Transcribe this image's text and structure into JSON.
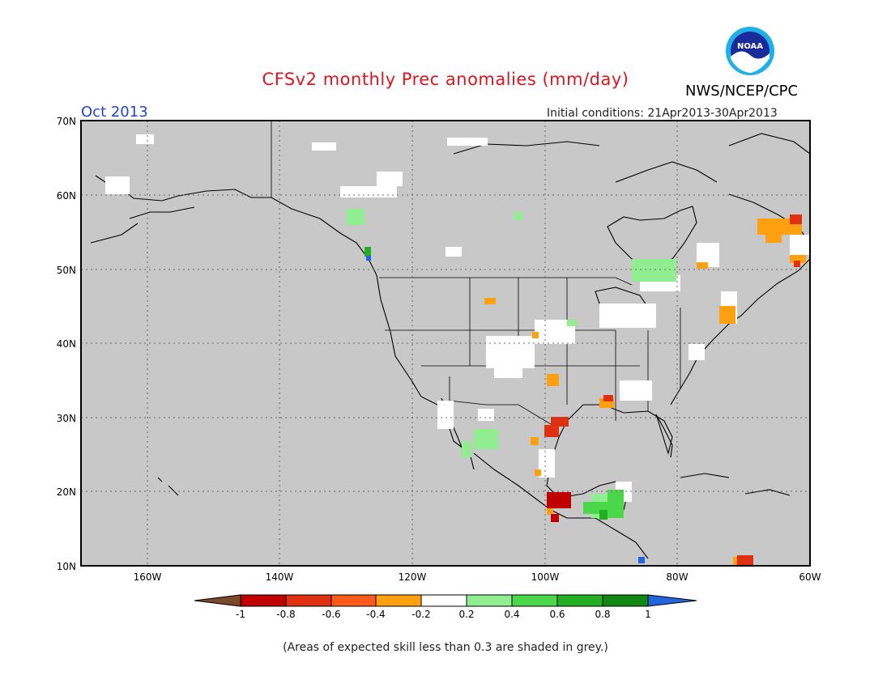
{
  "title": "CFSv2 monthly Prec anomalies (mm/day)",
  "agency": "NWS/NCEP/CPC",
  "logo_text": "NOAA",
  "valid_month": "Oct 2013",
  "initial_conditions": "Initial conditions: 21Apr2013-30Apr2013",
  "lat_labels": [
    "70N",
    "60N",
    "50N",
    "40N",
    "30N",
    "20N",
    "10N"
  ],
  "lon_labels": [
    "160W",
    "140W",
    "120W",
    "100W",
    "80W",
    "60W"
  ],
  "colorbar": {
    "labels": [
      "-1",
      "-0.8",
      "-0.6",
      "-0.4",
      "-0.2",
      "0.2",
      "0.4",
      "0.6",
      "0.8",
      "1"
    ],
    "colors": [
      "#7a4a2a",
      "#c00000",
      "#e03010",
      "#ff5a1a",
      "#ffa010",
      "#ffffff",
      "#90ee90",
      "#4ad84a",
      "#22b022",
      "#118811",
      "#2266dd"
    ]
  },
  "colors": {
    "grey_low_skill": "#c8c8c8",
    "title_red": "#e0141e",
    "month_blue": "#2244cc"
  },
  "footnote": "(Areas of expected skill less than 0.3 are shaded in grey.)"
}
